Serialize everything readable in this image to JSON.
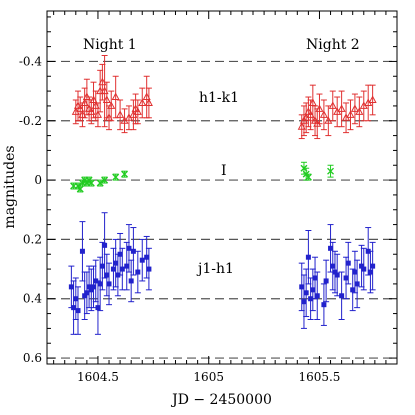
{
  "chart_data": {
    "type": "scatter",
    "xlabel": "JD − 2450000",
    "ylabel": "magnitudes",
    "xlim": [
      1604.27,
      1605.85
    ],
    "ylim": [
      0.62,
      -0.57
    ],
    "y_inverted": true,
    "xticks_major": [
      1604.5,
      1605,
      1605.5
    ],
    "xtick_labels": [
      "1604.5",
      "1605",
      "1605.5"
    ],
    "yticks_major": [
      -0.4,
      -0.2,
      0,
      0.2,
      0.4,
      0.6
    ],
    "ytick_labels": [
      "-0.4",
      "-0.2",
      "0",
      "0.2",
      "0.4",
      "0.6"
    ],
    "reference_lines": [
      -0.4,
      -0.2,
      0,
      0.2,
      0.4,
      0.6
    ],
    "annotations": {
      "night1": "Night 1",
      "night2": "Night 2",
      "h1k1": "h1-k1",
      "i_band": "I",
      "j1h1": "j1-h1"
    },
    "series": [
      {
        "name": "h1-k1",
        "marker": "triangle-open",
        "color": "#e03030",
        "points": [
          [
            1604.4,
            -0.23,
            0.04
          ],
          [
            1604.41,
            -0.25,
            0.05
          ],
          [
            1604.42,
            -0.24,
            0.04
          ],
          [
            1604.43,
            -0.22,
            0.04
          ],
          [
            1604.44,
            -0.26,
            0.05
          ],
          [
            1604.45,
            -0.28,
            0.06
          ],
          [
            1604.46,
            -0.24,
            0.04
          ],
          [
            1604.47,
            -0.23,
            0.04
          ],
          [
            1604.48,
            -0.27,
            0.06
          ],
          [
            1604.49,
            -0.25,
            0.05
          ],
          [
            1604.5,
            -0.22,
            0.04
          ],
          [
            1604.51,
            -0.3,
            0.07
          ],
          [
            1604.52,
            -0.33,
            0.06
          ],
          [
            1604.53,
            -0.3,
            0.12
          ],
          [
            1604.54,
            -0.27,
            0.06
          ],
          [
            1604.55,
            -0.21,
            0.04
          ],
          [
            1604.56,
            -0.25,
            0.05
          ],
          [
            1604.58,
            -0.28,
            0.07
          ],
          [
            1604.6,
            -0.22,
            0.05
          ],
          [
            1604.62,
            -0.2,
            0.04
          ],
          [
            1604.64,
            -0.21,
            0.04
          ],
          [
            1604.66,
            -0.22,
            0.05
          ],
          [
            1604.67,
            -0.24,
            0.05
          ],
          [
            1604.68,
            -0.23,
            0.04
          ],
          [
            1604.7,
            -0.26,
            0.05
          ],
          [
            1604.72,
            -0.28,
            0.07
          ],
          [
            1604.73,
            -0.26,
            0.05
          ],
          [
            1605.42,
            -0.18,
            0.04
          ],
          [
            1605.43,
            -0.2,
            0.05
          ],
          [
            1605.44,
            -0.21,
            0.05
          ],
          [
            1605.45,
            -0.23,
            0.05
          ],
          [
            1605.46,
            -0.22,
            0.05
          ],
          [
            1605.47,
            -0.26,
            0.06
          ],
          [
            1605.48,
            -0.2,
            0.05
          ],
          [
            1605.49,
            -0.19,
            0.05
          ],
          [
            1605.5,
            -0.24,
            0.05
          ],
          [
            1605.52,
            -0.22,
            0.05
          ],
          [
            1605.54,
            -0.2,
            0.05
          ],
          [
            1605.56,
            -0.25,
            0.05
          ],
          [
            1605.58,
            -0.23,
            0.05
          ],
          [
            1605.6,
            -0.24,
            0.06
          ],
          [
            1605.62,
            -0.21,
            0.05
          ],
          [
            1605.64,
            -0.22,
            0.05
          ],
          [
            1605.66,
            -0.24,
            0.05
          ],
          [
            1605.68,
            -0.23,
            0.05
          ],
          [
            1605.7,
            -0.25,
            0.05
          ],
          [
            1605.72,
            -0.26,
            0.06
          ],
          [
            1605.74,
            -0.27,
            0.05
          ]
        ]
      },
      {
        "name": "I",
        "marker": "x-cross",
        "color": "#22cc22",
        "points": [
          [
            1604.39,
            0.02,
            0.01
          ],
          [
            1604.41,
            0.02,
            0.01
          ],
          [
            1604.42,
            0.03,
            0.01
          ],
          [
            1604.43,
            0.01,
            0.01
          ],
          [
            1604.44,
            0.0,
            0.01
          ],
          [
            1604.45,
            0.01,
            0.01
          ],
          [
            1604.46,
            0.0,
            0.01
          ],
          [
            1604.47,
            0.01,
            0.01
          ],
          [
            1604.51,
            0.01,
            0.01
          ],
          [
            1604.53,
            0.0,
            0.01
          ],
          [
            1604.58,
            -0.01,
            0.01
          ],
          [
            1604.62,
            -0.02,
            0.01
          ],
          [
            1605.43,
            -0.04,
            0.02
          ],
          [
            1605.44,
            -0.02,
            0.02
          ],
          [
            1605.45,
            -0.01,
            0.01
          ],
          [
            1605.55,
            -0.03,
            0.02
          ]
        ]
      },
      {
        "name": "j1-h1",
        "marker": "square-filled",
        "color": "#2222cc",
        "points": [
          [
            1604.38,
            0.36,
            0.07
          ],
          [
            1604.39,
            0.43,
            0.09
          ],
          [
            1604.4,
            0.4,
            0.07
          ],
          [
            1604.41,
            0.44,
            0.08
          ],
          [
            1604.43,
            0.24,
            0.1
          ],
          [
            1604.44,
            0.39,
            0.08
          ],
          [
            1604.45,
            0.38,
            0.07
          ],
          [
            1604.46,
            0.36,
            0.07
          ],
          [
            1604.47,
            0.37,
            0.07
          ],
          [
            1604.48,
            0.36,
            0.07
          ],
          [
            1604.49,
            0.34,
            0.07
          ],
          [
            1604.5,
            0.43,
            0.09
          ],
          [
            1604.51,
            0.35,
            0.09
          ],
          [
            1604.52,
            0.29,
            0.08
          ],
          [
            1604.53,
            0.22,
            0.11
          ],
          [
            1604.54,
            0.32,
            0.07
          ],
          [
            1604.55,
            0.35,
            0.07
          ],
          [
            1604.57,
            0.3,
            0.07
          ],
          [
            1604.58,
            0.28,
            0.08
          ],
          [
            1604.59,
            0.32,
            0.07
          ],
          [
            1604.6,
            0.25,
            0.07
          ],
          [
            1604.61,
            0.3,
            0.07
          ],
          [
            1604.63,
            0.29,
            0.08
          ],
          [
            1604.64,
            0.23,
            0.08
          ],
          [
            1604.65,
            0.34,
            0.07
          ],
          [
            1604.66,
            0.24,
            0.08
          ],
          [
            1604.68,
            0.31,
            0.07
          ],
          [
            1604.7,
            0.27,
            0.07
          ],
          [
            1604.72,
            0.26,
            0.07
          ],
          [
            1604.73,
            0.3,
            0.07
          ],
          [
            1605.42,
            0.36,
            0.08
          ],
          [
            1605.43,
            0.41,
            0.09
          ],
          [
            1605.44,
            0.38,
            0.08
          ],
          [
            1605.45,
            0.26,
            0.09
          ],
          [
            1605.46,
            0.4,
            0.07
          ],
          [
            1605.47,
            0.37,
            0.07
          ],
          [
            1605.48,
            0.33,
            0.07
          ],
          [
            1605.49,
            0.39,
            0.08
          ],
          [
            1605.52,
            0.42,
            0.07
          ],
          [
            1605.53,
            0.34,
            0.07
          ],
          [
            1605.55,
            0.23,
            0.08
          ],
          [
            1605.56,
            0.29,
            0.08
          ],
          [
            1605.57,
            0.31,
            0.07
          ],
          [
            1605.58,
            0.32,
            0.07
          ],
          [
            1605.6,
            0.39,
            0.08
          ],
          [
            1605.62,
            0.33,
            0.07
          ],
          [
            1605.63,
            0.28,
            0.07
          ],
          [
            1605.65,
            0.37,
            0.07
          ],
          [
            1605.66,
            0.31,
            0.07
          ],
          [
            1605.67,
            0.35,
            0.08
          ],
          [
            1605.69,
            0.29,
            0.07
          ],
          [
            1605.7,
            0.3,
            0.07
          ],
          [
            1605.72,
            0.24,
            0.08
          ],
          [
            1605.73,
            0.31,
            0.07
          ],
          [
            1605.74,
            0.29,
            0.08
          ]
        ]
      }
    ]
  }
}
